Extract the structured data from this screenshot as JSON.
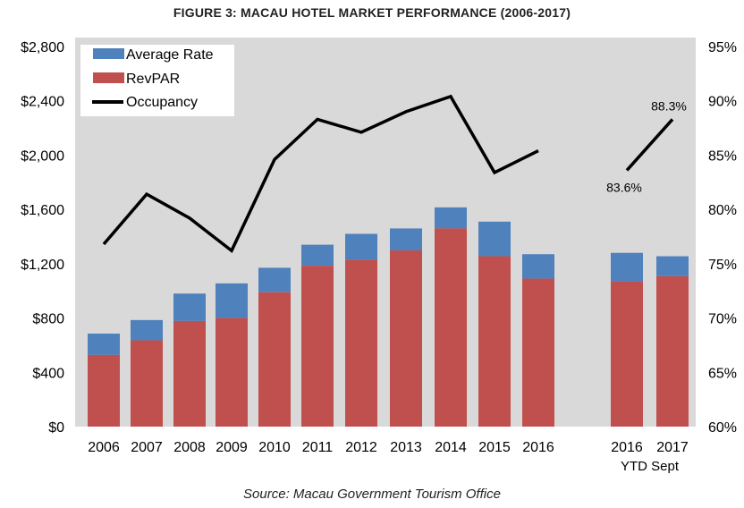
{
  "title": "FIGURE 3: MACAU HOTEL MARKET PERFORMANCE (2006-2017)",
  "source": "Source: Macau Government Tourism Office",
  "chart_data": {
    "type": "bar",
    "stacked": true,
    "categories": [
      "2006",
      "2007",
      "2008",
      "2009",
      "2010",
      "2011",
      "2012",
      "2013",
      "2014",
      "2015",
      "2016",
      "2016",
      "2017"
    ],
    "category_sublabel": "YTD Sept",
    "series": [
      {
        "name": "RevPAR",
        "color": "#c0504d",
        "values": [
          528,
          636,
          778,
          800,
          990,
          1185,
          1230,
          1298,
          1460,
          1255,
          1090,
          1070,
          1108
        ]
      },
      {
        "name": "Average Rate",
        "color": "#4f81bd",
        "values": [
          685,
          785,
          980,
          1055,
          1170,
          1340,
          1420,
          1460,
          1615,
          1510,
          1270,
          1280,
          1255
        ]
      },
      {
        "name": "Occupancy",
        "type": "line",
        "axis": "right",
        "color": "#000000",
        "values": [
          76.8,
          81.4,
          79.2,
          76.2,
          84.6,
          88.3,
          87.1,
          89.0,
          90.4,
          83.4,
          85.4,
          83.6,
          88.3
        ]
      }
    ],
    "line_segments": [
      [
        0,
        10
      ],
      [
        11,
        12
      ]
    ],
    "data_labels": [
      {
        "series": "Occupancy",
        "index": 11,
        "text": "83.6%"
      },
      {
        "series": "Occupancy",
        "index": 12,
        "text": "88.3%"
      }
    ],
    "y_left": {
      "ylim": [
        0,
        2800
      ],
      "ticks": [
        "$0",
        "$400",
        "$800",
        "$1,200",
        "$1,600",
        "$2,000",
        "$2,400",
        "$2,800"
      ]
    },
    "y_right": {
      "ylim": [
        60,
        95
      ],
      "ticks": [
        "60%",
        "65%",
        "70%",
        "75%",
        "80%",
        "85%",
        "90%",
        "95%"
      ]
    },
    "legend": {
      "position": "top-left",
      "entries": [
        "Average Rate",
        "RevPAR",
        "Occupancy"
      ]
    },
    "grid": false
  }
}
